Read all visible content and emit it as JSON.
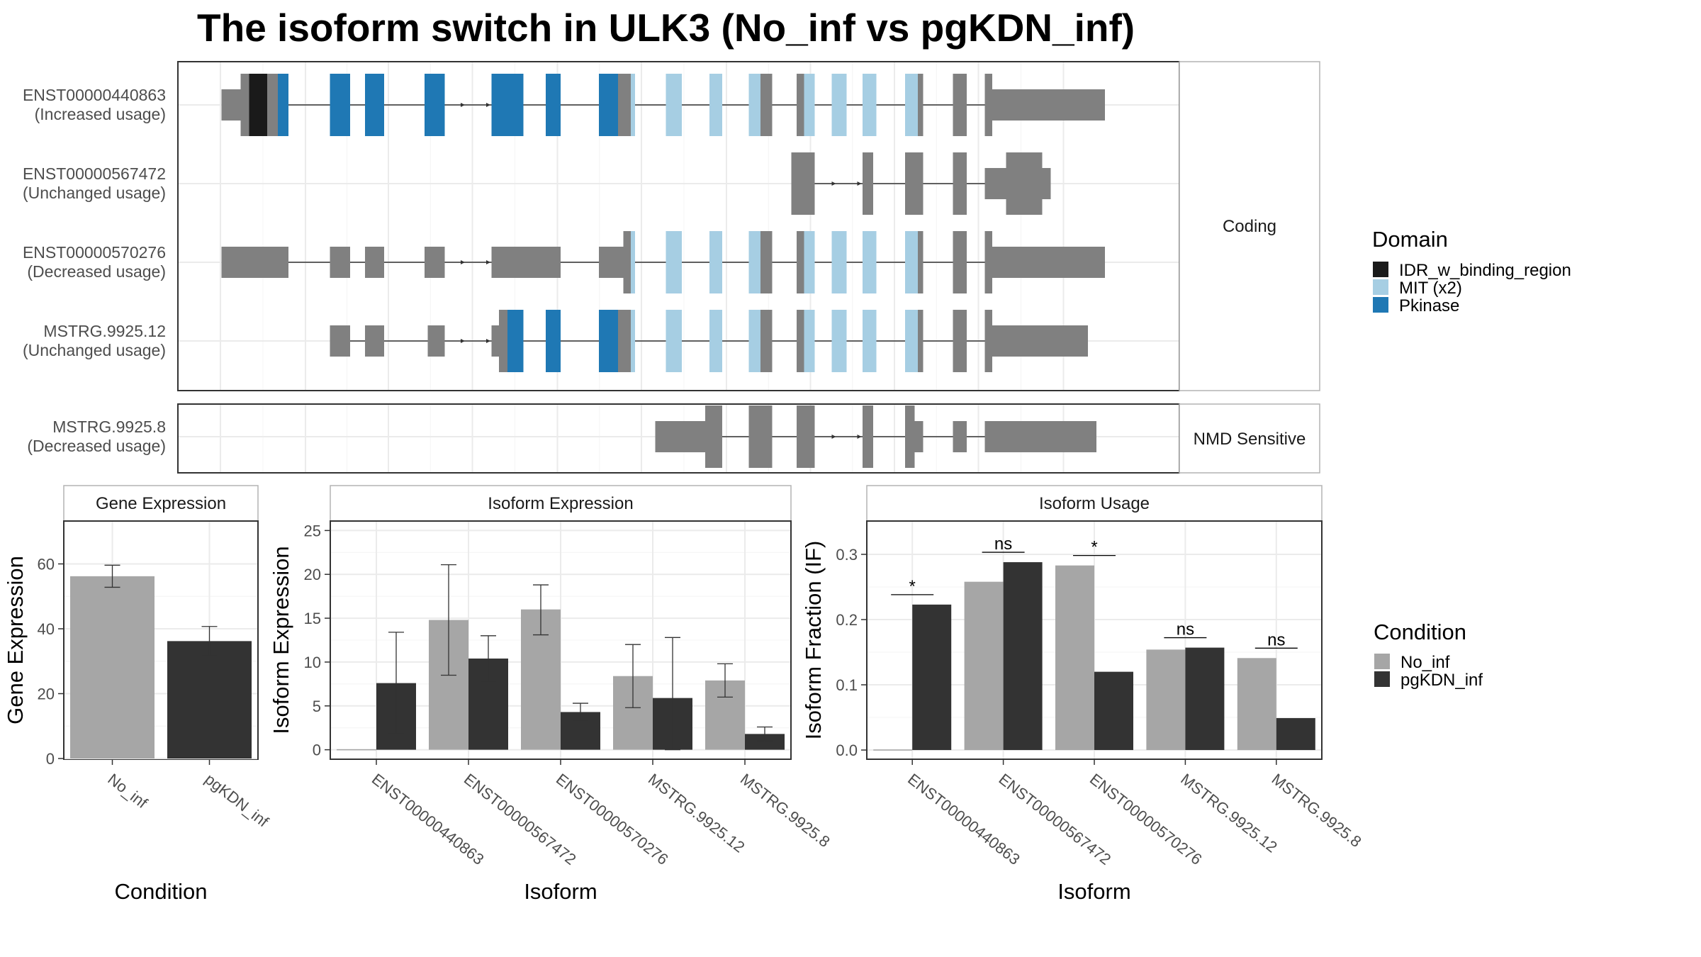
{
  "title": "The isoform switch in ULK3 (No_inf vs pgKDN_inf)",
  "colors": {
    "IDR_w_binding_region": "#1a1a1a",
    "MIT (x2)": "#a6cee3",
    "Pkinase": "#1f78b4",
    "none": "#808080",
    "No_inf": "#a6a6a6",
    "pgKDN_inf": "#333333"
  },
  "chart_data": [
    {
      "type": "table",
      "panel": "isoform-structures",
      "coding_strip": "Coding",
      "nmd_strip": "NMD Sensitive",
      "isoforms": [
        {
          "name": "ENST00000440863",
          "usage": "(Increased usage)",
          "group": "coding",
          "span": [
            202,
            1033
          ],
          "exons": [
            {
              "s": 202,
              "e": 220,
              "t": "utr"
            },
            {
              "s": 220,
              "e": 228,
              "t": "cds",
              "d": "none"
            },
            {
              "s": 228,
              "e": 245,
              "t": "cds",
              "d": "IDR_w_binding_region"
            },
            {
              "s": 245,
              "e": 255,
              "t": "cds",
              "d": "none"
            },
            {
              "s": 255,
              "e": 265,
              "t": "cds",
              "d": "Pkinase"
            },
            {
              "s": 304,
              "e": 323,
              "t": "cds",
              "d": "Pkinase"
            },
            {
              "s": 337,
              "e": 355,
              "t": "cds",
              "d": "Pkinase"
            },
            {
              "s": 393,
              "e": 412,
              "t": "cds",
              "d": "Pkinase"
            },
            {
              "s": 456,
              "e": 486,
              "t": "cds",
              "d": "Pkinase"
            },
            {
              "s": 507,
              "e": 521,
              "t": "cds",
              "d": "Pkinase"
            },
            {
              "s": 557,
              "e": 575,
              "t": "cds",
              "d": "Pkinase"
            },
            {
              "s": 575,
              "e": 587,
              "t": "cds",
              "d": "none"
            },
            {
              "s": 587,
              "e": 591,
              "t": "cds",
              "d": "MIT (x2)"
            },
            {
              "s": 620,
              "e": 635,
              "t": "cds",
              "d": "MIT (x2)"
            },
            {
              "s": 661,
              "e": 673,
              "t": "cds",
              "d": "MIT (x2)"
            },
            {
              "s": 698,
              "e": 709,
              "t": "cds",
              "d": "MIT (x2)"
            },
            {
              "s": 709,
              "e": 720,
              "t": "cds",
              "d": "none"
            },
            {
              "s": 743,
              "e": 750,
              "t": "cds",
              "d": "none"
            },
            {
              "s": 750,
              "e": 760,
              "t": "cds",
              "d": "MIT (x2)"
            },
            {
              "s": 776,
              "e": 790,
              "t": "cds",
              "d": "MIT (x2)"
            },
            {
              "s": 805,
              "e": 818,
              "t": "cds",
              "d": "MIT (x2)"
            },
            {
              "s": 845,
              "e": 857,
              "t": "cds",
              "d": "MIT (x2)"
            },
            {
              "s": 857,
              "e": 862,
              "t": "cds",
              "d": "none"
            },
            {
              "s": 890,
              "e": 903,
              "t": "cds",
              "d": "none"
            },
            {
              "s": 920,
              "e": 927,
              "t": "cds",
              "d": "none"
            },
            {
              "s": 927,
              "e": 1033,
              "t": "utr"
            }
          ],
          "arrows": [
            431,
            455
          ]
        },
        {
          "name": "ENST00000567472",
          "usage": "(Unchanged usage)",
          "group": "coding",
          "span": [
            738,
            982
          ],
          "exons": [
            {
              "s": 738,
              "e": 760,
              "t": "cds",
              "d": "none"
            },
            {
              "s": 805,
              "e": 815,
              "t": "cds",
              "d": "none"
            },
            {
              "s": 845,
              "e": 862,
              "t": "cds",
              "d": "none"
            },
            {
              "s": 890,
              "e": 903,
              "t": "cds",
              "d": "none"
            },
            {
              "s": 920,
              "e": 940,
              "t": "utr"
            },
            {
              "s": 940,
              "e": 974,
              "t": "cds",
              "d": "none"
            },
            {
              "s": 974,
              "e": 982,
              "t": "utr"
            }
          ],
          "arrows": [
            780,
            804
          ]
        },
        {
          "name": "ENST00000570276",
          "usage": "(Decreased usage)",
          "group": "coding",
          "span": [
            202,
            1033
          ],
          "exons": [
            {
              "s": 202,
              "e": 265,
              "t": "utr"
            },
            {
              "s": 304,
              "e": 323,
              "t": "utr"
            },
            {
              "s": 337,
              "e": 355,
              "t": "utr"
            },
            {
              "s": 393,
              "e": 412,
              "t": "utr"
            },
            {
              "s": 456,
              "e": 521,
              "t": "utr"
            },
            {
              "s": 557,
              "e": 580,
              "t": "utr"
            },
            {
              "s": 580,
              "e": 587,
              "t": "cds",
              "d": "none"
            },
            {
              "s": 587,
              "e": 591,
              "t": "cds",
              "d": "MIT (x2)"
            },
            {
              "s": 620,
              "e": 635,
              "t": "cds",
              "d": "MIT (x2)"
            },
            {
              "s": 661,
              "e": 673,
              "t": "cds",
              "d": "MIT (x2)"
            },
            {
              "s": 698,
              "e": 709,
              "t": "cds",
              "d": "MIT (x2)"
            },
            {
              "s": 709,
              "e": 720,
              "t": "cds",
              "d": "none"
            },
            {
              "s": 743,
              "e": 750,
              "t": "cds",
              "d": "none"
            },
            {
              "s": 750,
              "e": 760,
              "t": "cds",
              "d": "MIT (x2)"
            },
            {
              "s": 776,
              "e": 790,
              "t": "cds",
              "d": "MIT (x2)"
            },
            {
              "s": 805,
              "e": 818,
              "t": "cds",
              "d": "MIT (x2)"
            },
            {
              "s": 845,
              "e": 857,
              "t": "cds",
              "d": "MIT (x2)"
            },
            {
              "s": 857,
              "e": 862,
              "t": "cds",
              "d": "none"
            },
            {
              "s": 890,
              "e": 903,
              "t": "cds",
              "d": "none"
            },
            {
              "s": 920,
              "e": 927,
              "t": "cds",
              "d": "none"
            },
            {
              "s": 927,
              "e": 1033,
              "t": "utr"
            }
          ],
          "arrows": [
            431,
            455
          ]
        },
        {
          "name": "MSTRG.9925.12",
          "usage": "(Unchanged usage)",
          "group": "coding",
          "span": [
            304,
            1017
          ],
          "exons": [
            {
              "s": 304,
              "e": 323,
              "t": "utr"
            },
            {
              "s": 337,
              "e": 355,
              "t": "utr"
            },
            {
              "s": 396,
              "e": 412,
              "t": "utr"
            },
            {
              "s": 456,
              "e": 463,
              "t": "utr"
            },
            {
              "s": 463,
              "e": 471,
              "t": "cds",
              "d": "none"
            },
            {
              "s": 471,
              "e": 486,
              "t": "cds",
              "d": "Pkinase"
            },
            {
              "s": 507,
              "e": 521,
              "t": "cds",
              "d": "Pkinase"
            },
            {
              "s": 557,
              "e": 575,
              "t": "cds",
              "d": "Pkinase"
            },
            {
              "s": 575,
              "e": 587,
              "t": "cds",
              "d": "none"
            },
            {
              "s": 587,
              "e": 591,
              "t": "cds",
              "d": "MIT (x2)"
            },
            {
              "s": 620,
              "e": 635,
              "t": "cds",
              "d": "MIT (x2)"
            },
            {
              "s": 661,
              "e": 673,
              "t": "cds",
              "d": "MIT (x2)"
            },
            {
              "s": 698,
              "e": 709,
              "t": "cds",
              "d": "MIT (x2)"
            },
            {
              "s": 709,
              "e": 720,
              "t": "cds",
              "d": "none"
            },
            {
              "s": 743,
              "e": 750,
              "t": "cds",
              "d": "none"
            },
            {
              "s": 750,
              "e": 760,
              "t": "cds",
              "d": "MIT (x2)"
            },
            {
              "s": 776,
              "e": 790,
              "t": "cds",
              "d": "MIT (x2)"
            },
            {
              "s": 805,
              "e": 818,
              "t": "cds",
              "d": "MIT (x2)"
            },
            {
              "s": 845,
              "e": 857,
              "t": "cds",
              "d": "MIT (x2)"
            },
            {
              "s": 857,
              "e": 862,
              "t": "cds",
              "d": "none"
            },
            {
              "s": 890,
              "e": 903,
              "t": "cds",
              "d": "none"
            },
            {
              "s": 920,
              "e": 927,
              "t": "cds",
              "d": "none"
            },
            {
              "s": 927,
              "e": 1017,
              "t": "utr"
            }
          ],
          "arrows": [
            431,
            455
          ]
        },
        {
          "name": "MSTRG.9925.8",
          "usage": "(Decreased usage)",
          "group": "nmd",
          "span": [
            610,
            1025
          ],
          "exons": [
            {
              "s": 610,
              "e": 657,
              "t": "utr"
            },
            {
              "s": 657,
              "e": 673,
              "t": "cds",
              "d": "none"
            },
            {
              "s": 698,
              "e": 720,
              "t": "cds",
              "d": "none"
            },
            {
              "s": 743,
              "e": 760,
              "t": "cds",
              "d": "none"
            },
            {
              "s": 805,
              "e": 815,
              "t": "cds",
              "d": "none"
            },
            {
              "s": 845,
              "e": 854,
              "t": "cds",
              "d": "none"
            },
            {
              "s": 854,
              "e": 862,
              "t": "utr"
            },
            {
              "s": 890,
              "e": 903,
              "t": "utr"
            },
            {
              "s": 920,
              "e": 1025,
              "t": "utr"
            }
          ],
          "arrows": [
            780,
            804
          ]
        }
      ],
      "legend": {
        "title": "Domain",
        "entries": [
          "IDR_w_binding_region",
          "MIT (x2)",
          "Pkinase"
        ]
      }
    },
    {
      "type": "bar",
      "panel": "gene-expression",
      "strip": "Gene Expression",
      "xlabel": "Condition",
      "ylabel": "Gene Expression",
      "categories": [
        "No_inf",
        "pgKDN_inf"
      ],
      "values": [
        56.2,
        36.2
      ],
      "errors": [
        [
          52.8,
          59.6
        ],
        [
          31.7,
          40.7
        ]
      ],
      "ylim": [
        0,
        73
      ],
      "yticks": [
        0,
        20,
        40,
        60
      ]
    },
    {
      "type": "bar",
      "panel": "isoform-expression",
      "strip": "Isoform Expression",
      "xlabel": "Isoform",
      "ylabel": "Isoform Expression",
      "categories": [
        "ENST00000440863",
        "ENST00000567472",
        "ENST00000570276",
        "MSTRG.9925.12",
        "MSTRG.9925.8"
      ],
      "series": [
        {
          "name": "No_inf",
          "values": [
            0,
            14.8,
            16.0,
            8.4,
            7.9
          ],
          "errors": [
            [
              0,
              0
            ],
            [
              8.5,
              21.1
            ],
            [
              13.1,
              18.8
            ],
            [
              4.8,
              12.0
            ],
            [
              6.0,
              9.8
            ]
          ]
        },
        {
          "name": "pgKDN_inf",
          "values": [
            7.6,
            10.4,
            4.3,
            5.9,
            1.8
          ],
          "errors": [
            [
              1.8,
              13.4
            ],
            [
              7.7,
              13.0
            ],
            [
              3.3,
              5.3
            ],
            [
              0,
              12.8
            ],
            [
              1.0,
              2.6
            ]
          ]
        }
      ],
      "ylim": [
        -1,
        26
      ],
      "yticks": [
        0,
        5,
        10,
        15,
        20,
        25
      ]
    },
    {
      "type": "bar",
      "panel": "isoform-usage",
      "strip": "Isoform Usage",
      "xlabel": "Isoform",
      "ylabel": "Isoform Fraction (IF)",
      "categories": [
        "ENST00000440863",
        "ENST00000567472",
        "ENST00000570276",
        "MSTRG.9925.12",
        "MSTRG.9925.8"
      ],
      "series": [
        {
          "name": "No_inf",
          "values": [
            0.0,
            0.258,
            0.283,
            0.154,
            0.141
          ]
        },
        {
          "name": "pgKDN_inf",
          "values": [
            0.223,
            0.288,
            0.12,
            0.157,
            0.049
          ]
        }
      ],
      "significance": [
        "*",
        "ns",
        "*",
        "ns",
        "ns"
      ],
      "ylim": [
        -0.013,
        0.35
      ],
      "yticks": [
        0.0,
        0.1,
        0.2,
        0.3
      ],
      "ytick_labels": [
        "0.0",
        "0.1",
        "0.2",
        "0.3"
      ]
    }
  ],
  "condition_legend": {
    "title": "Condition",
    "entries": [
      "No_inf",
      "pgKDN_inf"
    ]
  }
}
